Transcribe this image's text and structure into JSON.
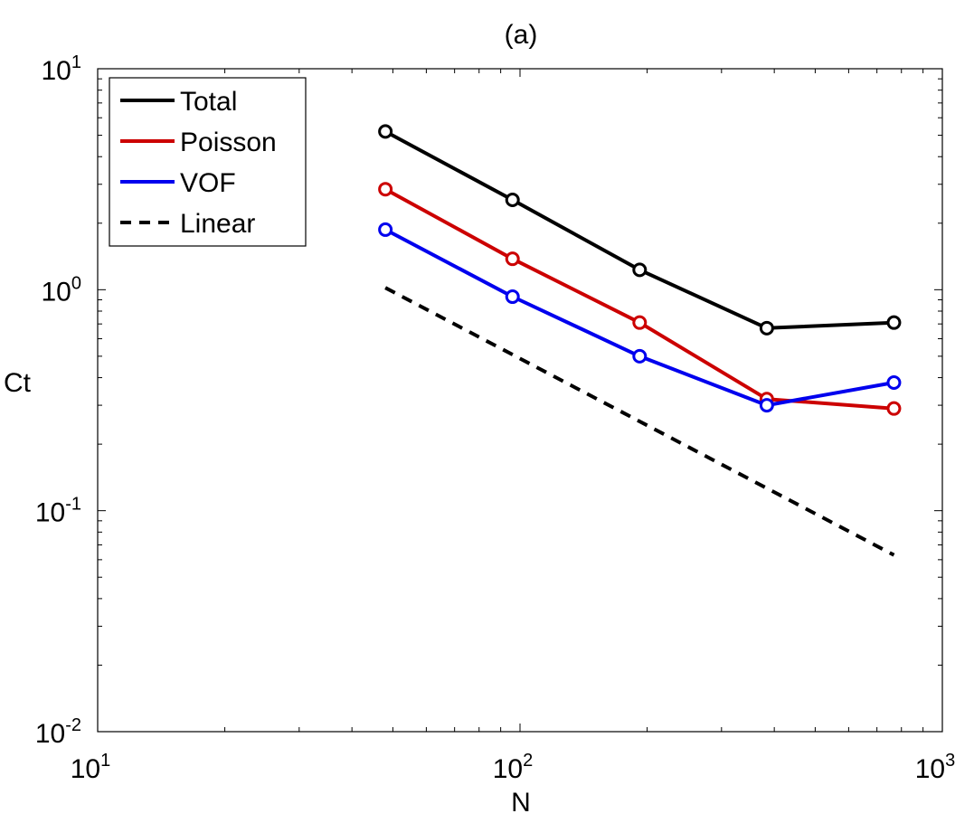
{
  "chart_data": {
    "type": "line",
    "title": "(a)",
    "xlabel": "N",
    "ylabel": "Ct",
    "xscale": "log",
    "yscale": "log",
    "xlim": [
      10,
      1000
    ],
    "ylim": [
      0.01,
      10
    ],
    "grid": false,
    "legend_position": "top-left",
    "x_ticks": [
      {
        "base": "10",
        "exp": "1"
      },
      {
        "base": "10",
        "exp": "2"
      },
      {
        "base": "10",
        "exp": "3"
      }
    ],
    "y_ticks": [
      {
        "base": "10",
        "exp": "-2"
      },
      {
        "base": "10",
        "exp": "-1"
      },
      {
        "base": "10",
        "exp": "0"
      },
      {
        "base": "10",
        "exp": "1"
      }
    ],
    "series": [
      {
        "name": "Total",
        "color": "#000000",
        "dash": false,
        "markers": true,
        "x": [
          48,
          96,
          192,
          384,
          768
        ],
        "y": [
          5.2,
          2.55,
          1.23,
          0.67,
          0.71
        ]
      },
      {
        "name": "Poisson",
        "color": "#cc0000",
        "dash": false,
        "markers": true,
        "x": [
          48,
          96,
          192,
          384,
          768
        ],
        "y": [
          2.85,
          1.38,
          0.71,
          0.32,
          0.29
        ]
      },
      {
        "name": "VOF",
        "color": "#0000ee",
        "dash": false,
        "markers": true,
        "x": [
          48,
          96,
          192,
          384,
          768
        ],
        "y": [
          1.87,
          0.93,
          0.5,
          0.3,
          0.38
        ]
      },
      {
        "name": "Linear",
        "color": "#000000",
        "dash": true,
        "markers": false,
        "x": [
          48,
          768
        ],
        "y": [
          1.02,
          0.063
        ]
      }
    ]
  }
}
